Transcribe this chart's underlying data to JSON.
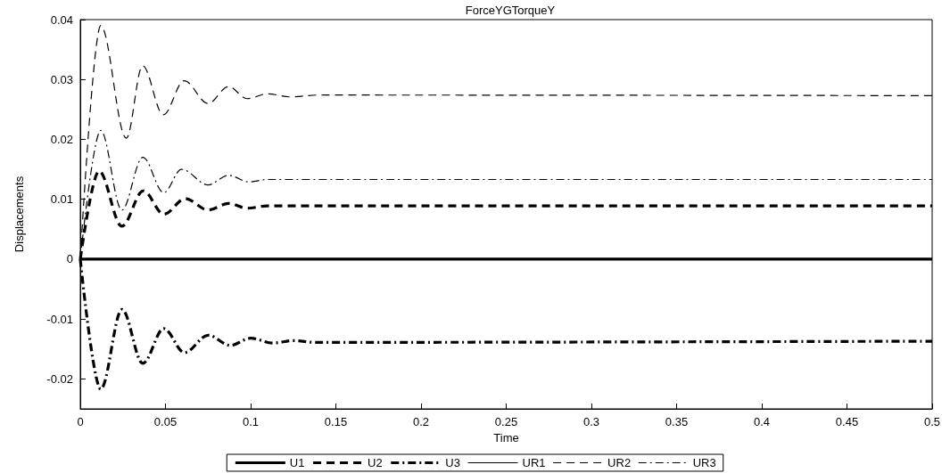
{
  "chart_data": {
    "type": "line",
    "title": "ForceYGTorqueY",
    "xlabel": "Time",
    "ylabel": "Displacements",
    "xlim": [
      0,
      0.5
    ],
    "xticks": [
      0,
      0.05,
      0.1,
      0.15,
      0.2,
      0.25,
      0.3,
      0.35,
      0.4,
      0.45,
      0.5
    ],
    "ylim": [
      -0.025,
      0.04
    ],
    "yticks": [
      -0.02,
      -0.01,
      0,
      0.01,
      0.02,
      0.03,
      0.04
    ],
    "grid": false,
    "legend": "bottom",
    "marker": "none",
    "series": [
      {
        "name": "U1",
        "color": "#000000",
        "line_style": "solid",
        "x": [
          0,
          0.5
        ],
        "values": [
          0,
          0
        ]
      },
      {
        "name": "U2",
        "color": "#000000",
        "line_style": "dashed",
        "x": [
          0,
          0.011,
          0.0244,
          0.037,
          0.049,
          0.0617,
          0.075,
          0.087,
          0.098,
          0.11,
          0.5
        ],
        "values": [
          0,
          0.0147,
          0.0055,
          0.0114,
          0.0075,
          0.0101,
          0.0082,
          0.0093,
          0.0085,
          0.0089,
          0.0089
        ]
      },
      {
        "name": "U3",
        "color": "#000000",
        "line_style": "dashdot",
        "x": [
          0,
          0.012,
          0.0245,
          0.0367,
          0.049,
          0.0612,
          0.075,
          0.088,
          0.1,
          0.113,
          0.125,
          0.138,
          0.5
        ],
        "values": [
          0,
          -0.0217,
          -0.0084,
          -0.0174,
          -0.0116,
          -0.0156,
          -0.0127,
          -0.0144,
          -0.0132,
          -0.014,
          -0.0136,
          -0.0139,
          -0.0137
        ]
      },
      {
        "name": "UR1",
        "color": "#000000",
        "line_style": "solid"
      },
      {
        "name": "UR2",
        "color": "#000000",
        "line_style": "dashed",
        "x": [
          0,
          0.012,
          0.027,
          0.0366,
          0.0487,
          0.061,
          0.075,
          0.087,
          0.098,
          0.11,
          0.123,
          0.14,
          0.5
        ],
        "values": [
          0,
          0.039,
          0.0202,
          0.0323,
          0.0241,
          0.0298,
          0.026,
          0.0288,
          0.0268,
          0.0276,
          0.0271,
          0.0274,
          0.0273
        ]
      },
      {
        "name": "UR3",
        "color": "#000000",
        "line_style": "dashdot",
        "x": [
          0,
          0.012,
          0.0244,
          0.0367,
          0.049,
          0.0594,
          0.075,
          0.087,
          0.099,
          0.11,
          0.5
        ],
        "values": [
          0,
          0.0215,
          0.0082,
          0.017,
          0.0111,
          0.015,
          0.0124,
          0.014,
          0.0129,
          0.0133,
          0.0133
        ]
      }
    ]
  }
}
